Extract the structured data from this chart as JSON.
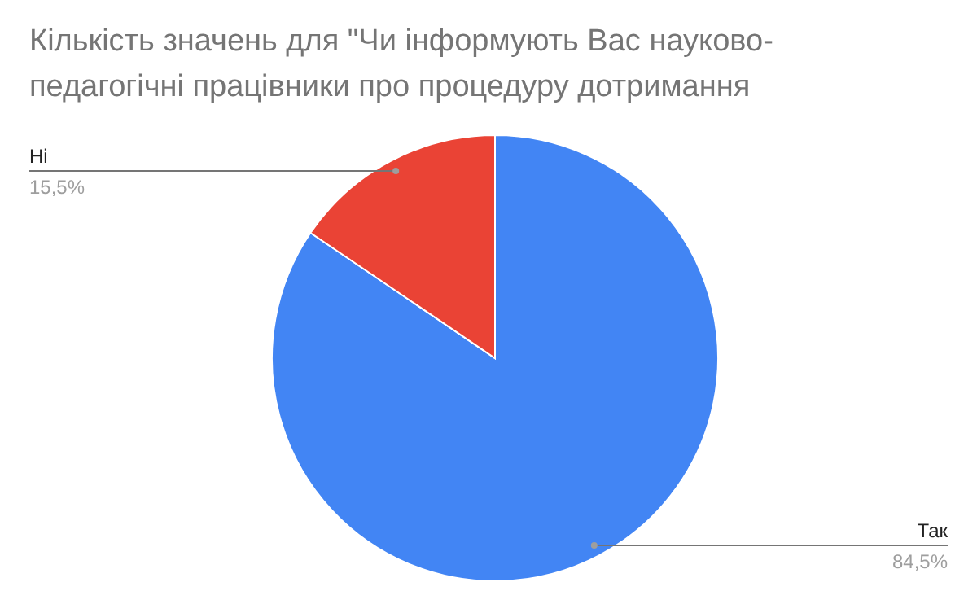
{
  "chart_data": {
    "type": "pie",
    "title": "Кількість значень для \"Чи інформують Вас науково-педагогічні працівники про процедуру дотримання",
    "categories": [
      "Так",
      "Ні"
    ],
    "values": [
      84.5,
      15.5
    ],
    "value_labels": [
      "84,5%",
      "15,5%"
    ],
    "colors": [
      "#4285f4",
      "#ea4335"
    ]
  }
}
